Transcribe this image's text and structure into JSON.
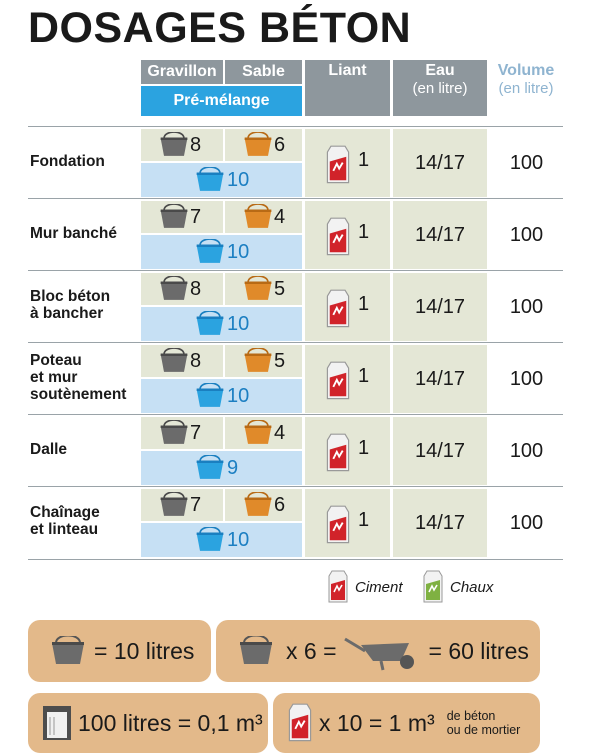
{
  "title": "DOSAGES BÉTON",
  "headers": {
    "gravillon": "Gravillon",
    "sable": "Sable",
    "premix": "Pré-mélange",
    "liant": "Liant",
    "eau": "Eau",
    "eau_unit": "(en litre)",
    "volume": "Volume",
    "volume_unit": "(en litre)"
  },
  "rows": [
    {
      "label": "Fondation",
      "gravillon": "8",
      "sable": "6",
      "premix": "10",
      "liant": "1",
      "eau": "14/17",
      "volume": "100"
    },
    {
      "label": "Mur banché",
      "gravillon": "7",
      "sable": "4",
      "premix": "10",
      "liant": "1",
      "eau": "14/17",
      "volume": "100"
    },
    {
      "label": "Bloc béton\nà bancher",
      "gravillon": "8",
      "sable": "5",
      "premix": "10",
      "liant": "1",
      "eau": "14/17",
      "volume": "100"
    },
    {
      "label": "Poteau\net mur\nsoutènement",
      "gravillon": "8",
      "sable": "5",
      "premix": "10",
      "liant": "1",
      "eau": "14/17",
      "volume": "100"
    },
    {
      "label": "Dalle",
      "gravillon": "7",
      "sable": "4",
      "premix": "9",
      "liant": "1",
      "eau": "14/17",
      "volume": "100"
    },
    {
      "label": "Chaînage\net linteau",
      "gravillon": "7",
      "sable": "6",
      "premix": "10",
      "liant": "1",
      "eau": "14/17",
      "volume": "100"
    }
  ],
  "legend": {
    "ciment": "Ciment",
    "chaux": "Chaux"
  },
  "info": {
    "seau": "= 10 litres",
    "x6": "x 6 =",
    "brouette": "= 60 litres",
    "volume": "100 litres = 0,1 m³",
    "sacs": "x 10 = 1 m³",
    "note_line1": "de béton",
    "note_line2": "ou de mortier"
  },
  "colors": {
    "gravillon_bucket": "#6b6b6b",
    "sable_bucket": "#e08a2a",
    "premix_bucket": "#2ba3e0",
    "ciment_bag": "#d1232a",
    "chaux_bag": "#7fb142"
  },
  "icons": {
    "gravillon": "grey-bucket-icon",
    "sable": "orange-bucket-icon",
    "premix": "blue-bucket-icon",
    "liant": "cement-bag-icon",
    "brouette": "wheelbarrow-icon",
    "volume": "cube-container-icon"
  }
}
